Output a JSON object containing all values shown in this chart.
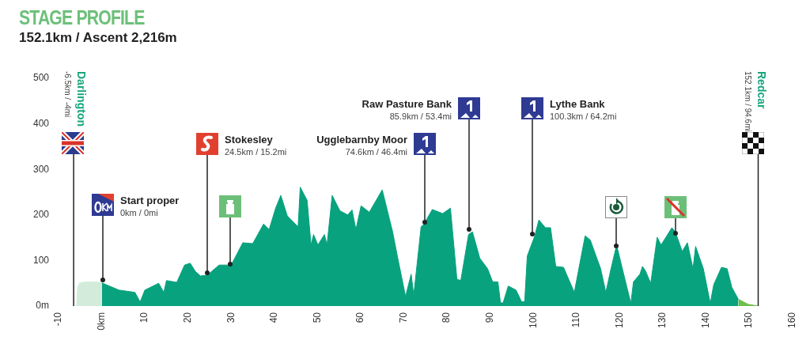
{
  "chart_data": {
    "type": "area",
    "title": "STAGE PROFILE",
    "subtitle": "152.1km / Ascent 2,216m",
    "xlim": [
      -10,
      160
    ],
    "xticks": [
      -10,
      {
        "value": 0,
        "label": "0km"
      },
      10,
      20,
      30,
      40,
      50,
      60,
      70,
      80,
      90,
      100,
      110,
      120,
      130,
      140,
      150,
      160
    ],
    "ylim": [
      0,
      500
    ],
    "yticks": [
      {
        "value": 0,
        "label": "0m"
      },
      100,
      200,
      300,
      400,
      500
    ],
    "grid": false,
    "legend": false,
    "series": [
      {
        "color": "#d3ebdb",
        "x": [
          -5.8,
          -5.6,
          -5.2,
          -4.5,
          -3,
          -1.5,
          -0.5,
          0
        ],
        "values": [
          0,
          40,
          50,
          52,
          53,
          53,
          52,
          51
        ]
      },
      {
        "color": "#08a27e",
        "x": [
          0,
          4,
          7.7,
          8.9,
          10,
          13.2,
          14.4,
          15,
          17.4,
          19.2,
          20.5,
          21.7,
          22.9,
          24.5,
          27.2,
          30,
          32.7,
          35,
          37.5,
          38.8,
          40.3,
          41.5,
          43,
          45.5,
          46,
          47.6,
          48.5,
          49.1,
          50.1,
          51.6,
          52.2,
          53.4,
          55.2,
          57,
          58,
          58.9,
          60.1,
          62,
          65,
          67.4,
          68.6,
          70.4,
          71.7,
          72.3,
          74,
          74.6,
          76.6,
          79,
          80.8,
          82.3,
          83.2,
          85,
          85.9,
          87.6,
          89.4,
          90.6,
          91.8,
          92.4,
          93,
          94.2,
          96,
          97.3,
          98,
          98.6,
          100.3,
          101.3,
          102.8,
          104,
          105.2,
          107,
          109.5,
          112,
          113.2,
          115.6,
          116.8,
          118,
          119.3,
          120.5,
          122.6,
          123.2,
          124.7,
          125.3,
          126,
          127.2,
          128.7,
          129.6,
          132.1,
          132.9,
          134.5,
          135.7,
          137,
          137.6,
          139.4,
          141,
          141.8,
          143.6,
          144.9,
          146,
          147.5
        ],
        "values": [
          51,
          35,
          30,
          9,
          35,
          50,
          30,
          56,
          52,
          90,
          94,
          76,
          66,
          68,
          90,
          90,
          139,
          137,
          180,
          168,
          215,
          243,
          198,
          174,
          261,
          232,
          134,
          157,
          134,
          157,
          134,
          243,
          209,
          200,
          211,
          168,
          220,
          206,
          255,
          163,
          105,
          21,
          70,
          24,
          174,
          179,
          212,
          203,
          215,
          59,
          56,
          157,
          163,
          105,
          82,
          53,
          53,
          7,
          7,
          44,
          35,
          9,
          10,
          110,
          153,
          189,
          172,
          172,
          87,
          85,
          30,
          154,
          145,
          82,
          30,
          82,
          134,
          87,
          6,
          53,
          70,
          87,
          77,
          50,
          151,
          134,
          172,
          163,
          120,
          139,
          82,
          131,
          82,
          6,
          47,
          85,
          82,
          41,
          15
        ]
      },
      {
        "color": "#6cbf4a",
        "x": [
          147.5,
          149.7,
          152.1
        ],
        "values": [
          15,
          4,
          0
        ]
      }
    ],
    "ref_lines": [
      {
        "axis": "x",
        "value": -6.5,
        "color": "#222222"
      },
      {
        "axis": "x",
        "value": 152.1,
        "color": "#222222"
      }
    ],
    "annotations": [
      "Darlington",
      "-6.5km / -4mi",
      "Start proper",
      "0km / 0mi",
      "Stokesley",
      "24.5km / 15.2mi",
      "Ugglebarnby Moor",
      "74.6km / 46.4mi",
      "Raw Pasture Bank",
      "85.9km / 53.4mi",
      "Lythe Bank",
      "100.3km / 64.2mi",
      "Redcar",
      "152.1km / 94.6mi"
    ]
  }
}
